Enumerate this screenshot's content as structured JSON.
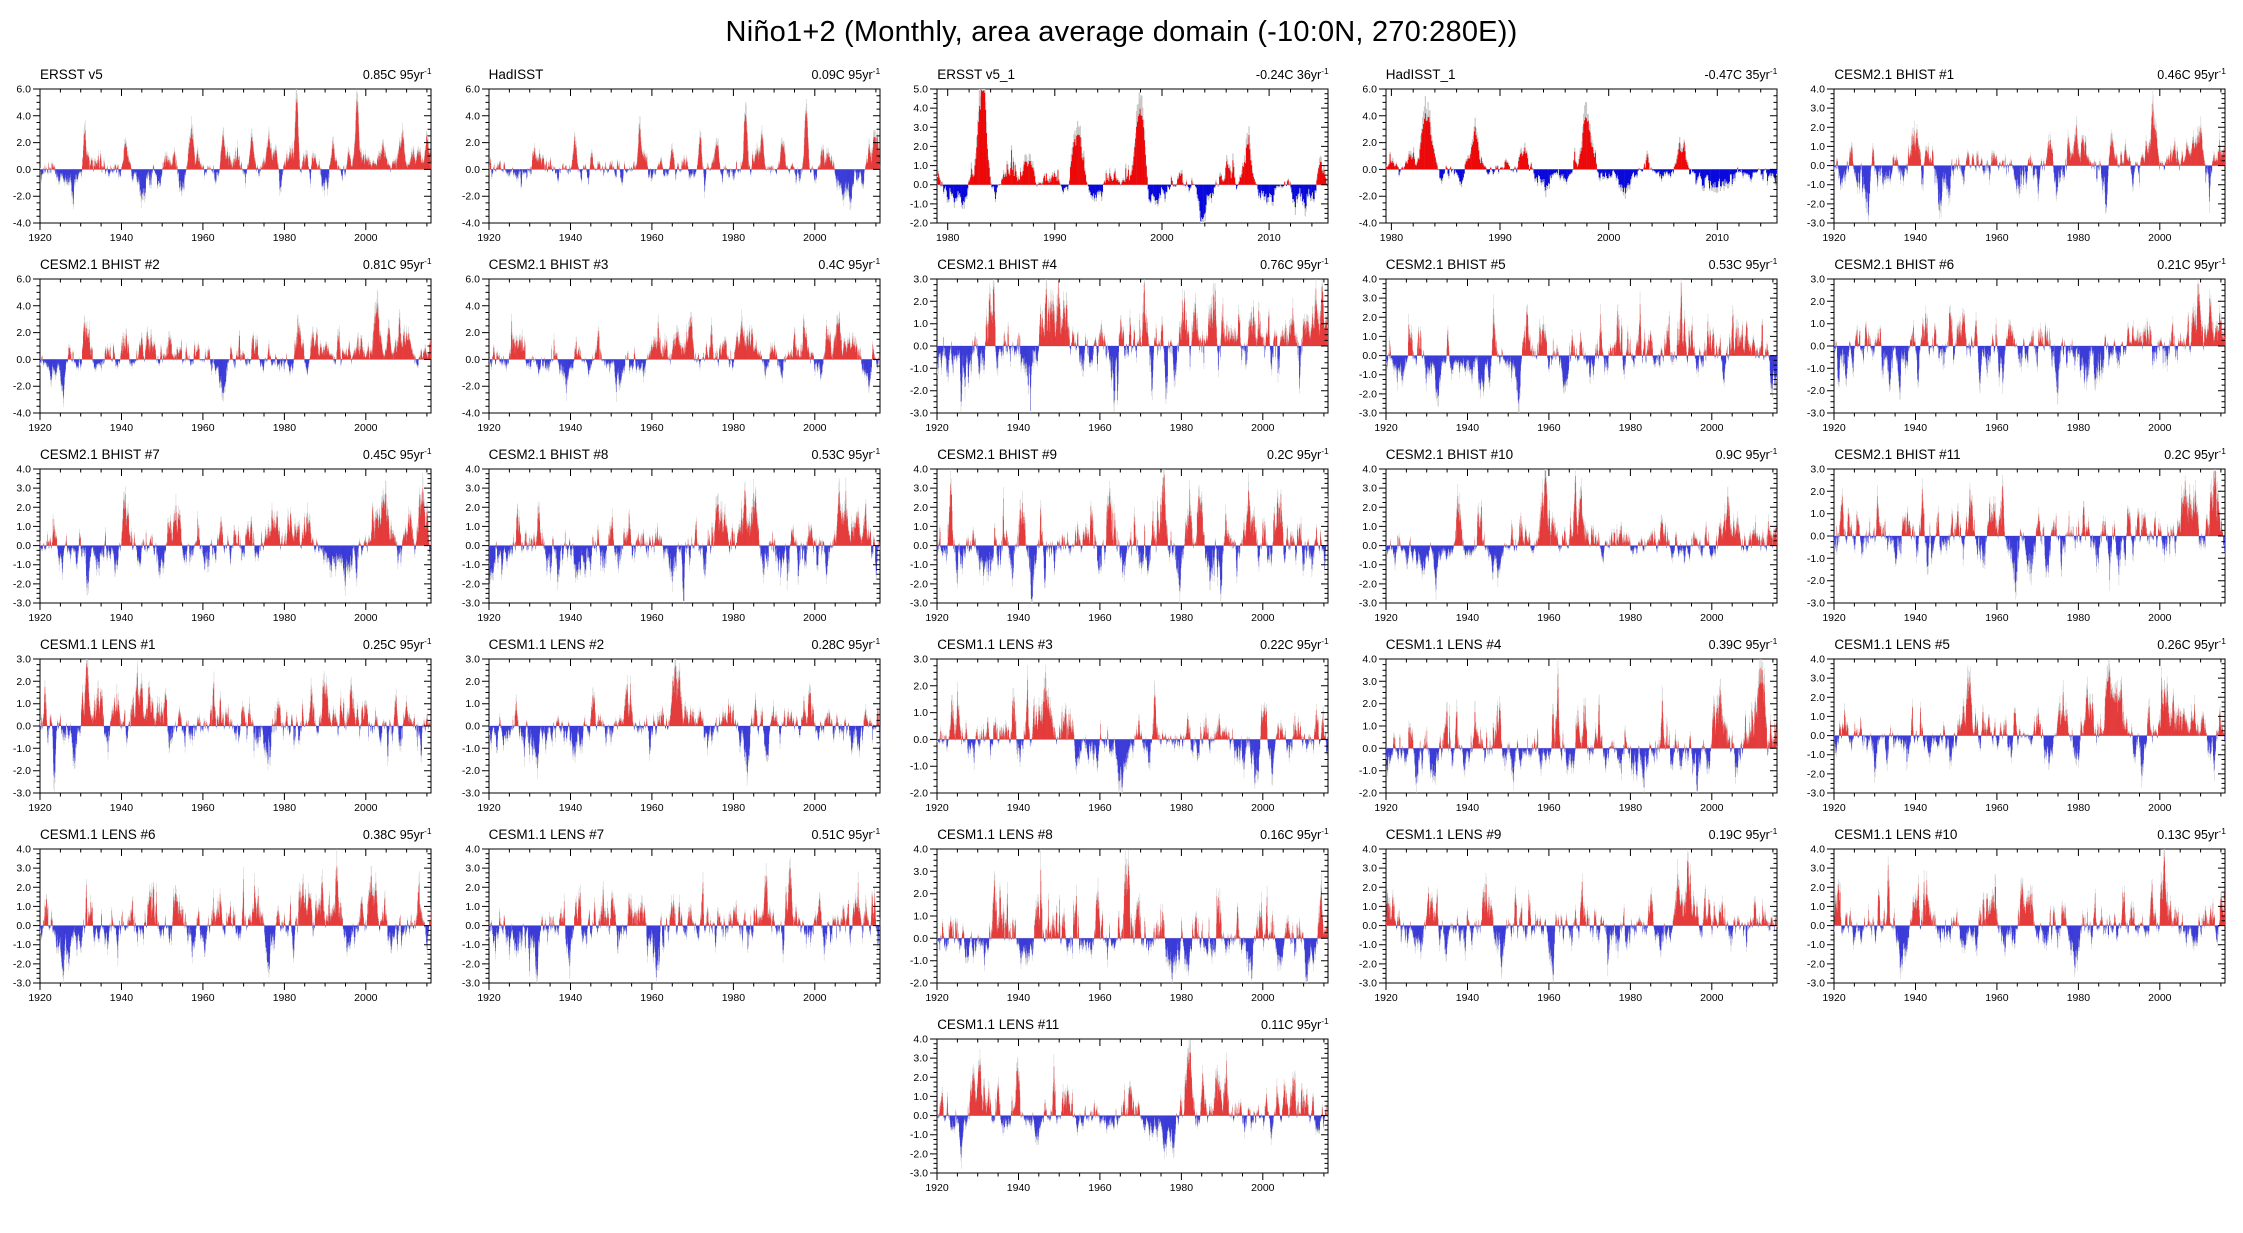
{
  "page_title": "Niño1+2 (Monthly, area average domain (-10:0N, 270:280E))",
  "colors": {
    "bar_positive": "#ee0000",
    "bar_negative": "#0000dd",
    "bar_shadow": "#c8c8c8",
    "zero_line": "#b4b4b4",
    "axis": "#000000"
  },
  "chart_data": [
    {
      "type": "bar",
      "title": "ERSST v5",
      "trend_label": "0.85C 95yr",
      "trend_exp": "-1",
      "trend_value_c": 0.85,
      "ylim": [
        -4,
        6
      ],
      "ytick_step": 2,
      "xlim": [
        1920,
        2016
      ],
      "xticks": [
        1920,
        1940,
        1960,
        1980,
        2000
      ],
      "xminor_step": 5,
      "approx_max_anomaly": 4.6,
      "approx_min_anomaly": -2.6,
      "events": [
        {
          "year": 1931,
          "amp": 1.6
        },
        {
          "year": 1941,
          "amp": 1.9
        },
        {
          "year": 1953,
          "amp": 1.3
        },
        {
          "year": 1957,
          "amp": 2.1
        },
        {
          "year": 1965,
          "amp": 1.7
        },
        {
          "year": 1972,
          "amp": 2.4
        },
        {
          "year": 1976,
          "amp": 1.9
        },
        {
          "year": 1983,
          "amp": 4.0
        },
        {
          "year": 1987,
          "amp": 1.7
        },
        {
          "year": 1992,
          "amp": 2.2
        },
        {
          "year": 1997.8,
          "amp": 4.5
        },
        {
          "year": 2009,
          "amp": 1.3
        },
        {
          "year": 2015,
          "amp": 1.6
        }
      ]
    },
    {
      "type": "bar",
      "title": "HadISST",
      "trend_label": "0.09C 95yr",
      "trend_exp": "-1",
      "trend_value_c": 0.09,
      "ylim": [
        -4,
        6
      ],
      "ytick_step": 2,
      "xlim": [
        1920,
        2016
      ],
      "xticks": [
        1920,
        1940,
        1960,
        1980,
        2000
      ],
      "xminor_step": 5,
      "approx_max_anomaly": 4.5,
      "approx_min_anomaly": -2.5,
      "events": [
        {
          "year": 1931,
          "amp": 1.5
        },
        {
          "year": 1941,
          "amp": 2.0
        },
        {
          "year": 1957,
          "amp": 2.0
        },
        {
          "year": 1965,
          "amp": 1.6
        },
        {
          "year": 1972,
          "amp": 2.3
        },
        {
          "year": 1976,
          "amp": 1.8
        },
        {
          "year": 1983,
          "amp": 4.1
        },
        {
          "year": 1987,
          "amp": 1.6
        },
        {
          "year": 1992,
          "amp": 2.0
        },
        {
          "year": 1997.8,
          "amp": 4.4
        },
        {
          "year": 2015,
          "amp": 1.8
        }
      ]
    },
    {
      "type": "bar",
      "title": "ERSST v5_1",
      "trend_label": "-0.24C 36yr",
      "trend_exp": "-1",
      "trend_value_c": -0.24,
      "ylim": [
        -2,
        5
      ],
      "ytick_step": 1,
      "xlim": [
        1979,
        2015.5
      ],
      "xticks": [
        1980,
        1990,
        2000,
        2010
      ],
      "xminor_step": 2,
      "approx_max_anomaly": 4.3,
      "approx_min_anomaly": -1.9,
      "events": [
        {
          "year": 1983.2,
          "amp": 4.0
        },
        {
          "year": 1987.5,
          "amp": 1.4
        },
        {
          "year": 1992.2,
          "amp": 1.9
        },
        {
          "year": 1997.9,
          "amp": 4.2
        },
        {
          "year": 2008,
          "amp": 1.1
        },
        {
          "year": 2014.8,
          "amp": 1.3
        }
      ]
    },
    {
      "type": "bar",
      "title": "HadISST_1",
      "trend_label": "-0.47C 35yr",
      "trend_exp": "-1",
      "trend_value_c": -0.47,
      "ylim": [
        -4,
        6
      ],
      "ytick_step": 2,
      "xlim": [
        1979.5,
        2015.5
      ],
      "xticks": [
        1980,
        1990,
        2000,
        2010
      ],
      "xminor_step": 2,
      "approx_max_anomaly": 4.5,
      "approx_min_anomaly": -1.9,
      "events": [
        {
          "year": 1983.2,
          "amp": 4.3
        },
        {
          "year": 1987.5,
          "amp": 1.4
        },
        {
          "year": 1992.2,
          "amp": 1.6
        },
        {
          "year": 1997.9,
          "amp": 4.1
        },
        {
          "year": 2006.8,
          "amp": 1.2
        },
        {
          "year": 2014.8,
          "amp": 1.2
        }
      ]
    },
    {
      "type": "bar",
      "title": "CESM2.1 BHIST #1",
      "trend_label": "0.46C 95yr",
      "trend_exp": "-1",
      "trend_value_c": 0.46,
      "ylim": [
        -3,
        4
      ],
      "ytick_step": 1,
      "xlim": [
        1920,
        2016
      ],
      "xticks": [
        1920,
        1940,
        1960,
        1980,
        2000
      ],
      "xminor_step": 5,
      "approx_max_anomaly": 3.2,
      "approx_min_anomaly": -2.6
    },
    {
      "type": "bar",
      "title": "CESM2.1 BHIST #2",
      "trend_label": "0.81C 95yr",
      "trend_exp": "-1",
      "trend_value_c": 0.81,
      "ylim": [
        -4,
        6
      ],
      "ytick_step": 2,
      "xlim": [
        1920,
        2016
      ],
      "xticks": [
        1920,
        1940,
        1960,
        1980,
        2000
      ],
      "xminor_step": 5,
      "approx_max_anomaly": 4.2,
      "approx_min_anomaly": -2.9
    },
    {
      "type": "bar",
      "title": "CESM2.1 BHIST #3",
      "trend_label": "0.4C 95yr",
      "trend_exp": "-1",
      "trend_value_c": 0.4,
      "ylim": [
        -4,
        6
      ],
      "ytick_step": 2,
      "xlim": [
        1920,
        2016
      ],
      "xticks": [
        1920,
        1940,
        1960,
        1980,
        2000
      ],
      "xminor_step": 5,
      "approx_max_anomaly": 3.1,
      "approx_min_anomaly": -2.5
    },
    {
      "type": "bar",
      "title": "CESM2.1 BHIST #4",
      "trend_label": "0.76C 95yr",
      "trend_exp": "-1",
      "trend_value_c": 0.76,
      "ylim": [
        -3,
        3
      ],
      "ytick_step": 1,
      "xlim": [
        1920,
        2016
      ],
      "xticks": [
        1920,
        1940,
        1960,
        1980,
        2000
      ],
      "xminor_step": 5,
      "approx_max_anomaly": 2.9,
      "approx_min_anomaly": -2.9
    },
    {
      "type": "bar",
      "title": "CESM2.1 BHIST #5",
      "trend_label": "0.53C 95yr",
      "trend_exp": "-1",
      "trend_value_c": 0.53,
      "ylim": [
        -3,
        4
      ],
      "ytick_step": 1,
      "xlim": [
        1920,
        2016
      ],
      "xticks": [
        1920,
        1940,
        1960,
        1980,
        2000
      ],
      "xminor_step": 5,
      "approx_max_anomaly": 3.8,
      "approx_min_anomaly": -2.5
    },
    {
      "type": "bar",
      "title": "CESM2.1 BHIST #6",
      "trend_label": "0.21C 95yr",
      "trend_exp": "-1",
      "trend_value_c": 0.21,
      "ylim": [
        -3,
        3
      ],
      "ytick_step": 1,
      "xlim": [
        1920,
        2016
      ],
      "xticks": [
        1920,
        1940,
        1960,
        1980,
        2000
      ],
      "xminor_step": 5,
      "approx_max_anomaly": 2.8,
      "approx_min_anomaly": -2.1
    },
    {
      "type": "bar",
      "title": "CESM2.1 BHIST #7",
      "trend_label": "0.45C 95yr",
      "trend_exp": "-1",
      "trend_value_c": 0.45,
      "ylim": [
        -3,
        4
      ],
      "ytick_step": 1,
      "xlim": [
        1920,
        2016
      ],
      "xticks": [
        1920,
        1940,
        1960,
        1980,
        2000
      ],
      "xminor_step": 5,
      "approx_max_anomaly": 3.0,
      "approx_min_anomaly": -2.2
    },
    {
      "type": "bar",
      "title": "CESM2.1 BHIST #8",
      "trend_label": "0.53C 95yr",
      "trend_exp": "-1",
      "trend_value_c": 0.53,
      "ylim": [
        -3,
        4
      ],
      "ytick_step": 1,
      "xlim": [
        1920,
        2016
      ],
      "xticks": [
        1920,
        1940,
        1960,
        1980,
        2000
      ],
      "xminor_step": 5,
      "approx_max_anomaly": 2.9,
      "approx_min_anomaly": -2.9
    },
    {
      "type": "bar",
      "title": "CESM2.1 BHIST #9",
      "trend_label": "0.2C 95yr",
      "trend_exp": "-1",
      "trend_value_c": 0.2,
      "ylim": [
        -3,
        4
      ],
      "ytick_step": 1,
      "xlim": [
        1920,
        2016
      ],
      "xticks": [
        1920,
        1940,
        1960,
        1980,
        2000
      ],
      "xminor_step": 5,
      "approx_max_anomaly": 3.7,
      "approx_min_anomaly": -2.8
    },
    {
      "type": "bar",
      "title": "CESM2.1 BHIST #10",
      "trend_label": "0.9C 95yr",
      "trend_exp": "-1",
      "trend_value_c": 0.9,
      "ylim": [
        -3,
        4
      ],
      "ytick_step": 1,
      "xlim": [
        1920,
        2016
      ],
      "xticks": [
        1920,
        1940,
        1960,
        1980,
        2000
      ],
      "xminor_step": 5,
      "approx_max_anomaly": 3.9,
      "approx_min_anomaly": -2.3
    },
    {
      "type": "bar",
      "title": "CESM2.1 BHIST #11",
      "trend_label": "0.2C 95yr",
      "trend_exp": "-1",
      "trend_value_c": 0.2,
      "ylim": [
        -3,
        3
      ],
      "ytick_step": 1,
      "xlim": [
        1920,
        2016
      ],
      "xticks": [
        1920,
        1940,
        1960,
        1980,
        2000
      ],
      "xminor_step": 5,
      "approx_max_anomaly": 2.9,
      "approx_min_anomaly": -2.5
    },
    {
      "type": "bar",
      "title": "CESM1.1 LENS #1",
      "trend_label": "0.25C 95yr",
      "trend_exp": "-1",
      "trend_value_c": 0.25,
      "ylim": [
        -3,
        3
      ],
      "ytick_step": 1,
      "xlim": [
        1920,
        2016
      ],
      "xticks": [
        1920,
        1940,
        1960,
        1980,
        2000
      ],
      "xminor_step": 5,
      "approx_max_anomaly": 2.8,
      "approx_min_anomaly": -2.3
    },
    {
      "type": "bar",
      "title": "CESM1.1 LENS #2",
      "trend_label": "0.28C 95yr",
      "trend_exp": "-1",
      "trend_value_c": 0.28,
      "ylim": [
        -3,
        3
      ],
      "ytick_step": 1,
      "xlim": [
        1920,
        2016
      ],
      "xticks": [
        1920,
        1940,
        1960,
        1980,
        2000
      ],
      "xminor_step": 5,
      "approx_max_anomaly": 2.7,
      "approx_min_anomaly": -2.1
    },
    {
      "type": "bar",
      "title": "CESM1.1 LENS #3",
      "trend_label": "0.22C 95yr",
      "trend_exp": "-1",
      "trend_value_c": 0.22,
      "ylim": [
        -2,
        3
      ],
      "ytick_step": 1,
      "xlim": [
        1920,
        2016
      ],
      "xticks": [
        1920,
        1940,
        1960,
        1980,
        2000
      ],
      "xminor_step": 5,
      "approx_max_anomaly": 2.5,
      "approx_min_anomaly": -1.8
    },
    {
      "type": "bar",
      "title": "CESM1.1 LENS #4",
      "trend_label": "0.39C 95yr",
      "trend_exp": "-1",
      "trend_value_c": 0.39,
      "ylim": [
        -2,
        4
      ],
      "ytick_step": 1,
      "xlim": [
        1920,
        2016
      ],
      "xticks": [
        1920,
        1940,
        1960,
        1980,
        2000
      ],
      "xminor_step": 5,
      "approx_max_anomaly": 3.6,
      "approx_min_anomaly": -1.9
    },
    {
      "type": "bar",
      "title": "CESM1.1 LENS #5",
      "trend_label": "0.26C 95yr",
      "trend_exp": "-1",
      "trend_value_c": 0.26,
      "ylim": [
        -3,
        4
      ],
      "ytick_step": 1,
      "xlim": [
        1920,
        2016
      ],
      "xticks": [
        1920,
        1940,
        1960,
        1980,
        2000
      ],
      "xminor_step": 5,
      "approx_max_anomaly": 3.4,
      "approx_min_anomaly": -2.1
    },
    {
      "type": "bar",
      "title": "CESM1.1 LENS #6",
      "trend_label": "0.38C 95yr",
      "trend_exp": "-1",
      "trend_value_c": 0.38,
      "ylim": [
        -3,
        4
      ],
      "ytick_step": 1,
      "xlim": [
        1920,
        2016
      ],
      "xticks": [
        1920,
        1940,
        1960,
        1980,
        2000
      ],
      "xminor_step": 5,
      "approx_max_anomaly": 3.1,
      "approx_min_anomaly": -2.6
    },
    {
      "type": "bar",
      "title": "CESM1.1 LENS #7",
      "trend_label": "0.51C 95yr",
      "trend_exp": "-1",
      "trend_value_c": 0.51,
      "ylim": [
        -3,
        4
      ],
      "ytick_step": 1,
      "xlim": [
        1920,
        2016
      ],
      "xticks": [
        1920,
        1940,
        1960,
        1980,
        2000
      ],
      "xminor_step": 5,
      "approx_max_anomaly": 3.0,
      "approx_min_anomaly": -2.7
    },
    {
      "type": "bar",
      "title": "CESM1.1 LENS #8",
      "trend_label": "0.16C 95yr",
      "trend_exp": "-1",
      "trend_value_c": 0.16,
      "ylim": [
        -2,
        4
      ],
      "ytick_step": 1,
      "xlim": [
        1920,
        2016
      ],
      "xticks": [
        1920,
        1940,
        1960,
        1980,
        2000
      ],
      "xminor_step": 5,
      "approx_max_anomaly": 3.3,
      "approx_min_anomaly": -1.9
    },
    {
      "type": "bar",
      "title": "CESM1.1 LENS #9",
      "trend_label": "0.19C 95yr",
      "trend_exp": "-1",
      "trend_value_c": 0.19,
      "ylim": [
        -3,
        4
      ],
      "ytick_step": 1,
      "xlim": [
        1920,
        2016
      ],
      "xticks": [
        1920,
        1940,
        1960,
        1980,
        2000
      ],
      "xminor_step": 5,
      "approx_max_anomaly": 3.4,
      "approx_min_anomaly": -2.6
    },
    {
      "type": "bar",
      "title": "CESM1.1 LENS #10",
      "trend_label": "0.13C 95yr",
      "trend_exp": "-1",
      "trend_value_c": 0.13,
      "ylim": [
        -3,
        4
      ],
      "ytick_step": 1,
      "xlim": [
        1920,
        2016
      ],
      "xticks": [
        1920,
        1940,
        1960,
        1980,
        2000
      ],
      "xminor_step": 5,
      "approx_max_anomaly": 3.6,
      "approx_min_anomaly": -2.2
    },
    {
      "type": "bar",
      "title": "CESM1.1 LENS #11",
      "trend_label": "0.11C 95yr",
      "trend_exp": "-1",
      "trend_value_c": 0.11,
      "ylim": [
        -3,
        4
      ],
      "ytick_step": 1,
      "xlim": [
        1920,
        2016
      ],
      "xticks": [
        1920,
        1940,
        1960,
        1980,
        2000
      ],
      "xminor_step": 5,
      "approx_max_anomaly": 3.3,
      "approx_min_anomaly": -2.2
    }
  ]
}
